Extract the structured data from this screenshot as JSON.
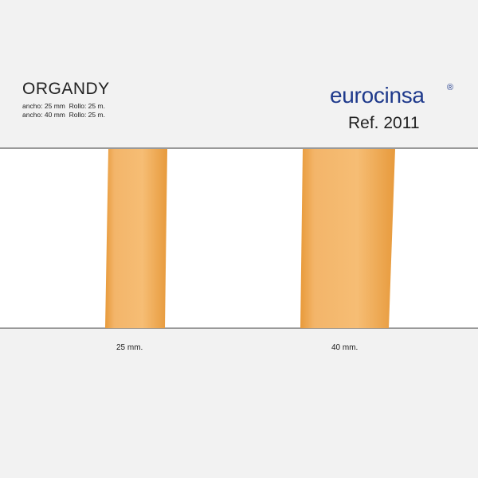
{
  "header": {
    "title": "ORGANDY",
    "details": [
      "ancho: 25 mm  Rollo: 25 m.",
      "ancho: 40 mm  Rollo: 25 m."
    ]
  },
  "brand": {
    "name": "eurocinsa",
    "mark": "®",
    "reference": "Ref. 2011"
  },
  "samples": [
    {
      "label": "25 mm."
    },
    {
      "label": "40 mm."
    }
  ]
}
